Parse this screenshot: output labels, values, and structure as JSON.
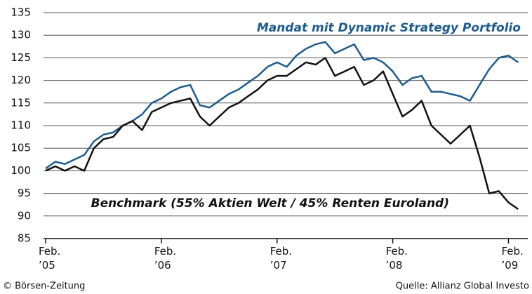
{
  "chart_data": {
    "type": "line",
    "x": [
      2005.083,
      2005.167,
      2005.25,
      2005.333,
      2005.417,
      2005.5,
      2005.583,
      2005.667,
      2005.75,
      2005.833,
      2005.917,
      2006.0,
      2006.083,
      2006.167,
      2006.25,
      2006.333,
      2006.417,
      2006.5,
      2006.583,
      2006.667,
      2006.75,
      2006.833,
      2006.917,
      2007.0,
      2007.083,
      2007.167,
      2007.25,
      2007.333,
      2007.417,
      2007.5,
      2007.583,
      2007.667,
      2007.75,
      2007.833,
      2007.917,
      2008.0,
      2008.083,
      2008.167,
      2008.25,
      2008.333,
      2008.417,
      2008.5,
      2008.583,
      2008.667,
      2008.75,
      2008.833,
      2008.917,
      2009.0,
      2009.083,
      2009.167
    ],
    "series": [
      {
        "name": "Mandat mit Dynamic Strategy Portfolio",
        "color": "#1f5c8c",
        "values": [
          100.5,
          102,
          101.5,
          102.5,
          103.5,
          106.5,
          108,
          108.5,
          110,
          111,
          112.5,
          115,
          116,
          117.5,
          118.5,
          119,
          114.5,
          114,
          115.5,
          117,
          118,
          119.5,
          121,
          123,
          124,
          123,
          125.5,
          127,
          128,
          128.5,
          126,
          127,
          128,
          124.5,
          125,
          124,
          122,
          119,
          120.5,
          121,
          117.5,
          117.5,
          117,
          116.5,
          115.5,
          119,
          122.5,
          125,
          125.5,
          124
        ]
      },
      {
        "name": "Benchmark (55% Aktien Welt / 45% Renten Euroland)",
        "color": "#111111",
        "values": [
          100,
          101,
          100,
          101,
          100,
          105,
          107,
          107.5,
          110,
          111,
          109,
          113,
          114,
          115,
          115.5,
          116,
          112,
          110,
          112,
          114,
          115,
          116.5,
          118,
          120,
          121,
          121,
          122.5,
          124,
          123.5,
          125,
          121,
          122,
          123,
          119,
          120,
          122,
          117,
          112,
          113.5,
          115.5,
          110,
          108,
          106,
          108,
          110,
          103,
          95,
          95.5,
          93,
          91.5
        ]
      }
    ],
    "xlim": [
      2005.065,
      2009.25
    ],
    "xticks": [
      {
        "value": 2005.083,
        "label": "Feb. ’05"
      },
      {
        "value": 2006.083,
        "label": "Feb. ’06"
      },
      {
        "value": 2007.083,
        "label": "Feb. ’07"
      },
      {
        "value": 2008.083,
        "label": "Feb. ’08"
      },
      {
        "value": 2009.083,
        "label": "Feb. ’09"
      }
    ],
    "ylim": [
      85,
      135
    ],
    "yticks": [
      85,
      90,
      95,
      100,
      105,
      110,
      115,
      120,
      125,
      130,
      135
    ],
    "grid": true,
    "copyright": "© Börsen-Zeitung",
    "source": "Quelle: Allianz Global Investo"
  }
}
